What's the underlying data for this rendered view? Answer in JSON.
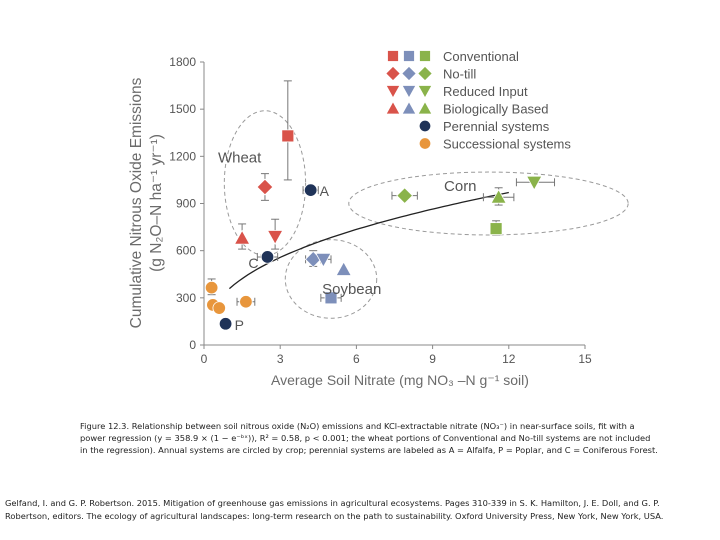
{
  "chart_data": {
    "type": "scatter",
    "xlabel": "Average Soil Nitrate (mg NO₃ –N g⁻¹ soil)",
    "ylabel_line1": "Cumulative Nitrous Oxide Emissions",
    "ylabel_line2": "(g N₂O–N ha⁻¹ yr⁻¹)",
    "xlim": [
      0,
      15
    ],
    "ylim": [
      0,
      1800
    ],
    "x_ticks": [
      "0",
      "3",
      "6",
      "9",
      "12",
      "15"
    ],
    "y_ticks": [
      "0",
      "300",
      "600",
      "900",
      "1200",
      "1500",
      "1800"
    ],
    "legend": [
      {
        "label": "Conventional",
        "shape": "square"
      },
      {
        "label": "No-till",
        "shape": "diamond"
      },
      {
        "label": "Reduced Input",
        "shape": "triangle-down"
      },
      {
        "label": "Biologically Based",
        "shape": "triangle-up"
      },
      {
        "label": "Perennial systems",
        "shape": "circle"
      },
      {
        "label": "Successional systems",
        "shape": "circle"
      }
    ],
    "colors": {
      "wheat": "#d9534a",
      "soybean": "#7d8fba",
      "corn": "#8ab34a",
      "perennial": "#1f3358",
      "successional": "#e8963c",
      "fit_line": "#222222",
      "ellipse": "#9a9a9a"
    },
    "points": [
      {
        "group": "wheat",
        "shape": "square",
        "x": 3.3,
        "y": 1330,
        "y_err": [
          1050,
          1680
        ]
      },
      {
        "group": "wheat",
        "shape": "diamond",
        "x": 2.4,
        "y": 1005,
        "y_err": [
          920,
          1090
        ]
      },
      {
        "group": "wheat",
        "shape": "triangle-down",
        "x": 2.8,
        "y": 690,
        "y_err": [
          610,
          800
        ]
      },
      {
        "group": "wheat",
        "shape": "triangle-up",
        "x": 1.5,
        "y": 680,
        "y_err": [
          610,
          770
        ]
      },
      {
        "group": "soybean",
        "shape": "square",
        "x": 5.0,
        "y": 300,
        "x_err": [
          4.6,
          5.4
        ]
      },
      {
        "group": "soybean",
        "shape": "diamond",
        "x": 4.3,
        "y": 545,
        "x_err": [
          4.0,
          4.6
        ],
        "y_err": [
          500,
          600
        ]
      },
      {
        "group": "soybean",
        "shape": "triangle-down",
        "x": 4.7,
        "y": 545,
        "x_err": [
          4.4,
          5.0
        ]
      },
      {
        "group": "soybean",
        "shape": "triangle-up",
        "x": 5.5,
        "y": 480
      },
      {
        "group": "corn",
        "shape": "square",
        "x": 11.5,
        "y": 740,
        "y_err": [
          700,
          790
        ]
      },
      {
        "group": "corn",
        "shape": "diamond",
        "x": 7.9,
        "y": 950,
        "x_err": [
          7.4,
          8.4
        ]
      },
      {
        "group": "corn",
        "shape": "triangle-down",
        "x": 13.0,
        "y": 1035,
        "x_err": [
          12.3,
          13.8
        ]
      },
      {
        "group": "corn",
        "shape": "triangle-up",
        "x": 11.6,
        "y": 940,
        "x_err": [
          11.0,
          12.2
        ],
        "y_err": [
          890,
          1000
        ]
      },
      {
        "group": "perennial",
        "shape": "circle",
        "x": 4.2,
        "y": 985,
        "label": "A",
        "x_err": [
          3.9,
          4.5
        ]
      },
      {
        "group": "perennial",
        "shape": "circle",
        "x": 2.5,
        "y": 560,
        "label": "C",
        "x_err": [
          2.1,
          2.9
        ]
      },
      {
        "group": "perennial",
        "shape": "circle",
        "x": 0.85,
        "y": 135,
        "label": "P"
      },
      {
        "group": "successional",
        "shape": "circle",
        "x": 0.3,
        "y": 365,
        "y_err": [
          320,
          420
        ]
      },
      {
        "group": "successional",
        "shape": "circle",
        "x": 1.65,
        "y": 275,
        "x_err": [
          1.3,
          2.0
        ]
      },
      {
        "group": "successional",
        "shape": "circle",
        "x": 0.35,
        "y": 255
      },
      {
        "group": "successional",
        "shape": "circle",
        "x": 0.6,
        "y": 235
      }
    ],
    "fit": {
      "a": 358.9,
      "b": 0.21,
      "x_start": 1.0,
      "x_end": 12.0
    },
    "ellipses": [
      {
        "cx": 2.4,
        "cy": 1030,
        "rx": 1.6,
        "ry": 460
      },
      {
        "cx": 5.0,
        "cy": 420,
        "rx": 1.8,
        "ry": 250
      },
      {
        "cx": 11.2,
        "cy": 900,
        "rx": 5.5,
        "ry": 200
      }
    ],
    "group_labels": [
      {
        "text": "Wheat",
        "x": 0.55,
        "y": 1160
      },
      {
        "text": "Soybean",
        "x": 4.65,
        "y": 325
      },
      {
        "text": "Corn",
        "x": 9.45,
        "y": 980
      }
    ]
  },
  "caption": "Figure 12.3. Relationship between soil nitrous oxide (N₂O) emissions and KCl-extractable nitrate (NO₃⁻) in near-surface soils, fit with a power regression (y = 358.9 × (1 − e⁻ᵇˣ)), R² = 0.58, p < 0.001; the wheat portions of Conventional and No-till systems are not included in the regression). Annual systems are circled by crop; perennial systems are labeled as A = Alfalfa, P = Poplar, and C = Coniferous Forest.",
  "citation": "Gelfand, I. and G. P. Robertson. 2015. Mitigation of greenhouse gas emissions in agricultural ecosystems. Pages 310-339 in S. K. Hamilton, J. E. Doll, and G. P. Robertson, editors. The ecology of agricultural landscapes: long-term research on the path to sustainability. Oxford University Press, New York, New York, USA."
}
